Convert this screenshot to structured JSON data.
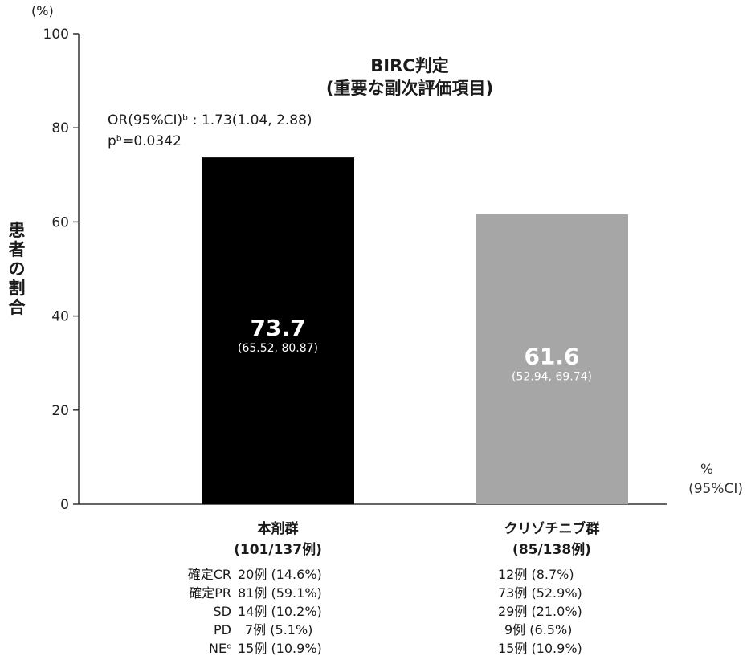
{
  "chart_data": {
    "type": "bar",
    "title": [
      "BIRC判定",
      "(重要な副次評価項目)"
    ],
    "y_unit": "(%)",
    "ylabel": "患者の割合",
    "ylim": [
      0,
      100
    ],
    "yticks": [
      0,
      20,
      40,
      60,
      80,
      100
    ],
    "stats": [
      "OR(95%CI)ᵇ : 1.73(1.04, 2.88)",
      "pᵇ=0.0342"
    ],
    "categories": [
      {
        "label": "本剤群",
        "sublabel": "(101/137例)"
      },
      {
        "label": "クリゾチニブ群",
        "sublabel": "(85/138例)"
      }
    ],
    "values": [
      73.7,
      61.6
    ],
    "value_labels": [
      "73.7",
      "61.6"
    ],
    "ci_labels": [
      "(65.52, 80.87)",
      "(52.94, 69.74)"
    ],
    "colors": [
      "#000000",
      "#a6a6a6"
    ],
    "legend": [
      "%",
      "(95%CI)"
    ],
    "response_labels": [
      "確定CR",
      "確定PR",
      "SD",
      "PD",
      "NEᶜ"
    ],
    "response_values": [
      [
        "20例 (14.6%)",
        "81例 (59.1%)",
        "14例 (10.2%)",
        "7例 (5.1%)",
        "15例 (10.9%)"
      ],
      [
        "12例 (8.7%)",
        "73例 (52.9%)",
        "29例 (21.0%)",
        "9例 (6.5%)",
        "15例 (10.9%)"
      ]
    ]
  }
}
